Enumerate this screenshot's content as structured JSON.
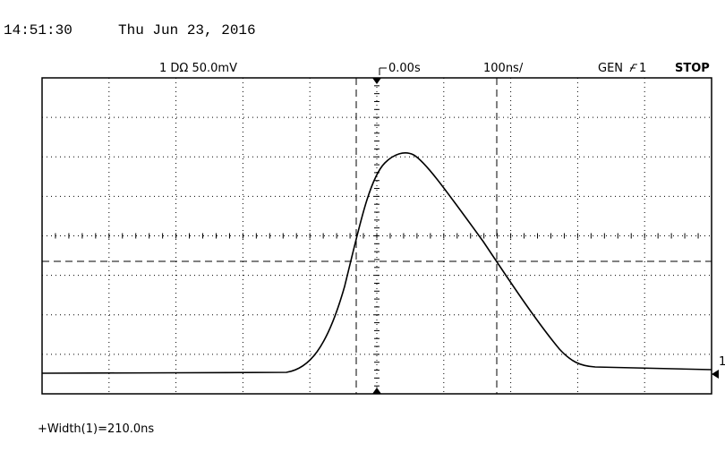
{
  "header": {
    "time": "14:51:30",
    "date": "Thu Jun 23, 2016"
  },
  "status": {
    "channel": "1 DΩ 50.0mV",
    "delay": "0.00s",
    "timebase": "100ns/",
    "source": "GEN",
    "trigger": "1",
    "run_state": "STOP"
  },
  "measurement": "+Width(1)=210.0ns",
  "marker": "1"
}
